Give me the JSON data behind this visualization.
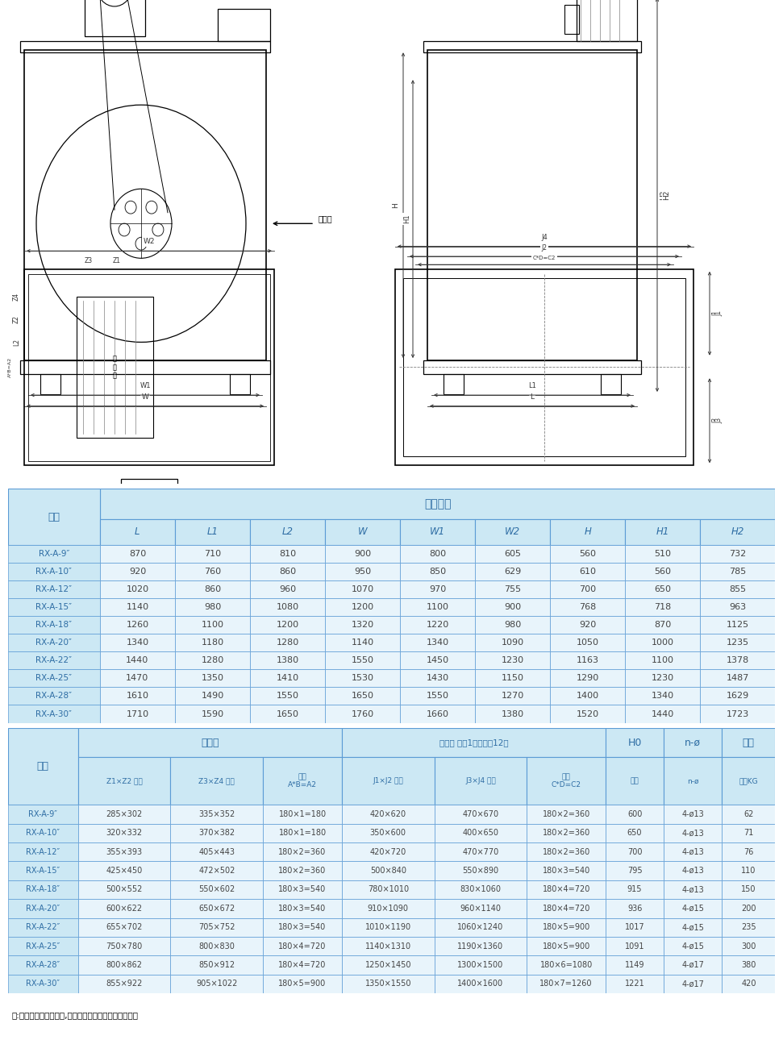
{
  "table1_header_main": "外形尺寸",
  "table1_col0_header": "型号",
  "table1_cols": [
    "L",
    "L1",
    "L2",
    "W",
    "W1",
    "W2",
    "H",
    "H1",
    "H2"
  ],
  "table1_rows": [
    [
      "RX-A-9″",
      "870",
      "710",
      "810",
      "900",
      "800",
      "605",
      "560",
      "510",
      "732"
    ],
    [
      "RX-A-10″",
      "920",
      "760",
      "860",
      "950",
      "850",
      "629",
      "610",
      "560",
      "785"
    ],
    [
      "RX-A-12″",
      "1020",
      "860",
      "960",
      "1070",
      "970",
      "755",
      "700",
      "650",
      "855"
    ],
    [
      "RX-A-15″",
      "1140",
      "980",
      "1080",
      "1200",
      "1100",
      "900",
      "768",
      "718",
      "963"
    ],
    [
      "RX-A-18″",
      "1260",
      "1100",
      "1200",
      "1320",
      "1220",
      "980",
      "920",
      "870",
      "1125"
    ],
    [
      "RX-A-20″",
      "1340",
      "1180",
      "1280",
      "1140",
      "1340",
      "1090",
      "1050",
      "1000",
      "1235"
    ],
    [
      "RX-A-22″",
      "1440",
      "1280",
      "1380",
      "1550",
      "1450",
      "1230",
      "1163",
      "1100",
      "1378"
    ],
    [
      "RX-A-25″",
      "1470",
      "1350",
      "1410",
      "1530",
      "1430",
      "1150",
      "1290",
      "1230",
      "1487"
    ],
    [
      "RX-A-28″",
      "1610",
      "1490",
      "1550",
      "1650",
      "1550",
      "1270",
      "1400",
      "1340",
      "1629"
    ],
    [
      "RX-A-30″",
      "1710",
      "1590",
      "1650",
      "1760",
      "1660",
      "1380",
      "1520",
      "1440",
      "1723"
    ]
  ],
  "table2_rows": [
    [
      "RX-A-9″",
      "285×302",
      "335×352",
      "180×1=180",
      "420×620",
      "470×670",
      "180×2=360",
      "600",
      "4-ø13",
      "62"
    ],
    [
      "RX-A-10″",
      "320×332",
      "370×382",
      "180×1=180",
      "350×600",
      "400×650",
      "180×2=360",
      "650",
      "4-ø13",
      "71"
    ],
    [
      "RX-A-12″",
      "355×393",
      "405×443",
      "180×2=360",
      "420×720",
      "470×770",
      "180×2=360",
      "700",
      "4-ø13",
      "76"
    ],
    [
      "RX-A-15″",
      "425×450",
      "472×502",
      "180×2=360",
      "500×840",
      "550×890",
      "180×3=540",
      "795",
      "4-ø13",
      "110"
    ],
    [
      "RX-A-18″",
      "500×552",
      "550×602",
      "180×3=540",
      "780×1010",
      "830×1060",
      "180×4=720",
      "915",
      "4-ø13",
      "150"
    ],
    [
      "RX-A-20″",
      "600×622",
      "650×672",
      "180×3=540",
      "910×1090",
      "960×1140",
      "180×4=720",
      "936",
      "4-ø15",
      "200"
    ],
    [
      "RX-A-22″",
      "655×702",
      "705×752",
      "180×3=540",
      "1010×1190",
      "1060×1240",
      "180×5=900",
      "1017",
      "4-ø15",
      "235"
    ],
    [
      "RX-A-25″",
      "750×780",
      "800×830",
      "180×4=720",
      "1140×1310",
      "1190×1360",
      "180×5=900",
      "1091",
      "4-ø15",
      "300"
    ],
    [
      "RX-A-28″",
      "800×862",
      "850×912",
      "180×4=720",
      "1250×1450",
      "1300×1500",
      "180×6=1080",
      "1149",
      "4-ø17",
      "380"
    ],
    [
      "RX-A-30″",
      "855×922",
      "905×1022",
      "180×5=900",
      "1350×1550",
      "1400×1600",
      "180×7=1260",
      "1221",
      "4-ø17",
      "420"
    ]
  ],
  "footer_note": "注:以上尺寸为参考尺寸,设计需要准确无误及时提出来。",
  "header_bg": "#cce8f4",
  "cell_bg": "#e8f4fb",
  "border_color": "#5b9bd5",
  "text_color": "#2e6da4",
  "data_text_color": "#444444"
}
